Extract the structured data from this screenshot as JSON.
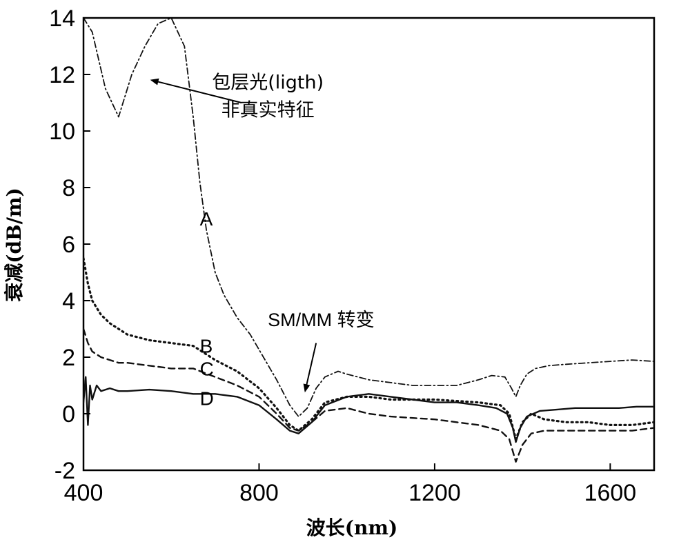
{
  "chart_data": {
    "type": "line",
    "title": "",
    "xlabel": "波长(nm)",
    "ylabel": "衰减(dB/m)",
    "xlim": [
      400,
      1700
    ],
    "ylim": [
      -2,
      14
    ],
    "xticks": [
      400,
      800,
      1200,
      1600
    ],
    "yticks": [
      -2,
      0,
      2,
      4,
      6,
      8,
      10,
      12,
      14
    ],
    "grid": false,
    "series": [
      {
        "name": "A",
        "style": "dash-dot",
        "x": [
          400,
          420,
          450,
          480,
          510,
          540,
          570,
          600,
          630,
          650,
          665,
          680,
          700,
          720,
          750,
          780,
          810,
          840,
          870,
          890,
          910,
          930,
          950,
          980,
          1000,
          1050,
          1100,
          1150,
          1200,
          1250,
          1300,
          1330,
          1360,
          1375,
          1385,
          1395,
          1410,
          1430,
          1460,
          1500,
          1550,
          1600,
          1650,
          1700
        ],
        "y": [
          14,
          13.5,
          11.5,
          10.5,
          12,
          13,
          13.8,
          14,
          13,
          10.5,
          8.2,
          6.5,
          5.0,
          4.2,
          3.4,
          2.8,
          2.0,
          1.2,
          0.3,
          -0.1,
          0.2,
          0.9,
          1.3,
          1.5,
          1.4,
          1.2,
          1.1,
          1.0,
          1.0,
          1.0,
          1.2,
          1.35,
          1.3,
          0.9,
          0.6,
          1.0,
          1.4,
          1.6,
          1.7,
          1.75,
          1.8,
          1.85,
          1.9,
          1.85
        ]
      },
      {
        "name": "B",
        "style": "dotted",
        "x": [
          400,
          410,
          420,
          440,
          460,
          480,
          500,
          550,
          600,
          650,
          700,
          750,
          800,
          840,
          870,
          890,
          920,
          950,
          1000,
          1050,
          1100,
          1200,
          1300,
          1350,
          1370,
          1385,
          1400,
          1420,
          1450,
          1500,
          1550,
          1600,
          1650,
          1700
        ],
        "y": [
          5.5,
          4.6,
          4.0,
          3.5,
          3.2,
          3.0,
          2.8,
          2.6,
          2.5,
          2.4,
          1.9,
          1.5,
          0.9,
          0.2,
          -0.4,
          -0.6,
          -0.2,
          0.4,
          0.6,
          0.6,
          0.5,
          0.5,
          0.4,
          0.3,
          0.0,
          -0.9,
          -0.3,
          0.0,
          -0.2,
          -0.3,
          -0.3,
          -0.4,
          -0.4,
          -0.3
        ]
      },
      {
        "name": "C",
        "style": "dashed",
        "x": [
          400,
          410,
          420,
          440,
          460,
          480,
          500,
          550,
          600,
          650,
          700,
          750,
          800,
          840,
          870,
          890,
          920,
          950,
          1000,
          1050,
          1100,
          1200,
          1300,
          1350,
          1370,
          1385,
          1400,
          1420,
          1450,
          1500,
          1550,
          1600,
          1650,
          1700
        ],
        "y": [
          3.0,
          2.5,
          2.2,
          2.0,
          1.9,
          1.8,
          1.8,
          1.7,
          1.6,
          1.6,
          1.3,
          1.0,
          0.6,
          0.0,
          -0.5,
          -0.6,
          -0.3,
          0.1,
          0.2,
          0.0,
          -0.1,
          -0.2,
          -0.4,
          -0.6,
          -0.9,
          -1.7,
          -1.1,
          -0.7,
          -0.6,
          -0.6,
          -0.6,
          -0.6,
          -0.6,
          -0.5
        ]
      },
      {
        "name": "D",
        "style": "solid",
        "x": [
          400,
          405,
          410,
          415,
          420,
          430,
          440,
          460,
          480,
          500,
          550,
          600,
          650,
          700,
          750,
          800,
          840,
          870,
          890,
          920,
          950,
          1000,
          1050,
          1100,
          1150,
          1200,
          1250,
          1300,
          1340,
          1365,
          1378,
          1385,
          1395,
          1410,
          1440,
          1480,
          1520,
          1570,
          1620,
          1660,
          1700
        ],
        "y": [
          0.4,
          1.3,
          -0.4,
          1.0,
          0.5,
          1.0,
          0.8,
          0.9,
          0.8,
          0.8,
          0.85,
          0.8,
          0.7,
          0.7,
          0.6,
          0.3,
          -0.2,
          -0.6,
          -0.7,
          -0.3,
          0.3,
          0.6,
          0.7,
          0.6,
          0.5,
          0.4,
          0.4,
          0.3,
          0.2,
          0.0,
          -0.5,
          -1.0,
          -0.5,
          -0.1,
          0.1,
          0.15,
          0.2,
          0.2,
          0.2,
          0.25,
          0.25
        ]
      }
    ],
    "curve_labels": [
      {
        "text": "A",
        "x": 665,
        "y": 6.9
      },
      {
        "text": "B",
        "x": 665,
        "y": 2.4
      },
      {
        "text": "C",
        "x": 665,
        "y": 1.6
      },
      {
        "text": "D",
        "x": 665,
        "y": 0.55
      }
    ],
    "annotations": [
      {
        "line1": "包层光(ligth)",
        "line2": "非真实特征",
        "text_x": 820,
        "text_y": 11.5,
        "arrow_from": [
          760,
          11.0
        ],
        "arrow_to": [
          555,
          11.8
        ]
      },
      {
        "text": "SM/MM 转变",
        "text_x": 820,
        "text_y": 3.1,
        "arrow_from": [
          930,
          2.5
        ],
        "arrow_to": [
          905,
          0.8
        ]
      }
    ]
  }
}
